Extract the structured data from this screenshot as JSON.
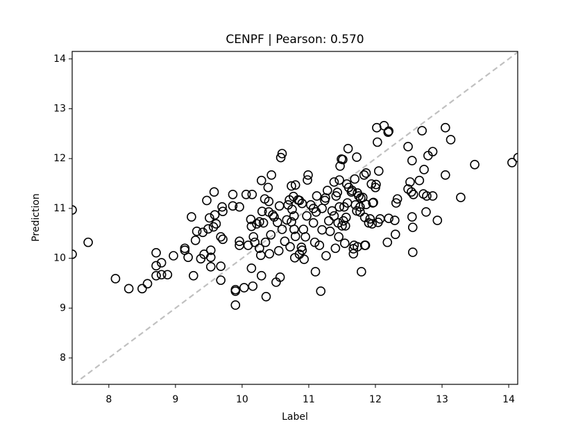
{
  "chart_data": {
    "type": "scatter",
    "title": "CENPF  |  Pearson: 0.570",
    "xlabel": "Label",
    "ylabel": "Prediction",
    "xlim": [
      7.45,
      14.135
    ],
    "ylim": [
      7.47,
      14.15
    ],
    "xticks": [
      8,
      9,
      10,
      11,
      12,
      13,
      14
    ],
    "yticks": [
      8,
      9,
      10,
      11,
      12,
      13,
      14
    ],
    "diagonal": true,
    "diagonal_color": "#c0c0c0",
    "marker_color": "#000000",
    "x": [
      7.45,
      7.45,
      7.69,
      8.1,
      8.3,
      8.5,
      8.58,
      8.71,
      8.71,
      8.79,
      8.71,
      8.79,
      8.88,
      8.97,
      9.14,
      9.14,
      9.19,
      9.24,
      9.27,
      9.3,
      9.32,
      9.38,
      9.41,
      9.43,
      9.49,
      9.53,
      9.53,
      9.51,
      9.47,
      9.58,
      9.57,
      9.59,
      9.53,
      9.61,
      9.68,
      9.71,
      9.68,
      9.68,
      9.7,
      9.71,
      9.86,
      9.86,
      9.96,
      9.9,
      9.9,
      9.9,
      9.96,
      9.96,
      10.03,
      10.09,
      10.06,
      10.15,
      10.13,
      10.14,
      10.14,
      10.16,
      10.17,
      10.19,
      10.22,
      10.26,
      10.26,
      10.29,
      10.28,
      10.29,
      10.3,
      10.32,
      10.34,
      10.35,
      10.39,
      10.4,
      10.41,
      10.36,
      10.4,
      10.43,
      10.44,
      10.46,
      10.48,
      10.51,
      10.53,
      10.55,
      10.56,
      10.58,
      10.6,
      10.57,
      10.6,
      10.64,
      10.67,
      10.69,
      10.71,
      10.72,
      10.74,
      10.74,
      10.75,
      10.77,
      10.78,
      10.78,
      10.79,
      10.8,
      10.8,
      10.84,
      10.86,
      10.86,
      10.9,
      10.89,
      10.9,
      10.92,
      10.93,
      10.95,
      10.97,
      10.98,
      10.99,
      11.03,
      11.07,
      11.07,
      11.09,
      11.1,
      11.11,
      11.12,
      11.16,
      11.18,
      11.2,
      11.2,
      11.24,
      11.25,
      11.26,
      11.28,
      11.3,
      11.32,
      11.35,
      11.38,
      11.38,
      11.4,
      11.41,
      11.43,
      11.44,
      11.45,
      11.46,
      11.46,
      11.47,
      11.49,
      11.5,
      11.51,
      11.52,
      11.53,
      11.54,
      11.55,
      11.56,
      11.57,
      11.58,
      11.59,
      11.6,
      11.64,
      11.65,
      11.67,
      11.67,
      11.68,
      11.69,
      11.7,
      11.72,
      11.72,
      11.73,
      11.73,
      11.75,
      11.77,
      11.77,
      11.78,
      11.79,
      11.81,
      11.83,
      11.84,
      11.84,
      11.85,
      11.86,
      11.86,
      11.9,
      11.92,
      11.94,
      11.96,
      11.97,
      11.95,
      12.0,
      12.01,
      12.02,
      12.03,
      12.04,
      12.05,
      12.07,
      12.13,
      12.18,
      12.19,
      12.2,
      12.2,
      12.29,
      12.31,
      12.33,
      12.3,
      12.49,
      12.49,
      12.52,
      12.54,
      12.55,
      12.55,
      12.56,
      12.56,
      12.57,
      12.66,
      12.7,
      12.72,
      12.73,
      12.76,
      12.77,
      12.79,
      12.86,
      12.86,
      12.93,
      13.05,
      13.05,
      13.13,
      13.28,
      13.49,
      14.05,
      14.14
    ],
    "y": [
      10.97,
      10.08,
      10.32,
      9.59,
      9.39,
      9.39,
      9.49,
      10.11,
      9.85,
      9.91,
      9.65,
      9.67,
      9.67,
      10.05,
      10.2,
      10.16,
      10.02,
      10.83,
      9.65,
      10.36,
      10.54,
      9.99,
      10.52,
      10.08,
      10.59,
      10.16,
      10.02,
      10.81,
      11.16,
      11.33,
      10.63,
      10.87,
      9.83,
      10.69,
      10.43,
      10.38,
      9.84,
      9.56,
      11.03,
      10.94,
      11.28,
      11.05,
      11.03,
      9.34,
      9.37,
      9.06,
      10.34,
      10.26,
      9.41,
      10.26,
      11.28,
      11.28,
      10.78,
      10.64,
      9.8,
      9.44,
      10.43,
      10.32,
      10.69,
      10.2,
      10.73,
      11.56,
      10.06,
      9.65,
      10.94,
      10.71,
      11.19,
      10.32,
      11.42,
      11.14,
      10.09,
      9.23,
      10.93,
      10.47,
      11.67,
      10.87,
      10.83,
      9.52,
      10.72,
      10.15,
      11.05,
      12.02,
      12.1,
      9.62,
      10.58,
      10.34,
      10.77,
      11.07,
      11.17,
      10.23,
      11.45,
      10.73,
      10.98,
      11.24,
      10.58,
      10.85,
      10.01,
      11.47,
      10.44,
      11.17,
      11.16,
      10.08,
      11.1,
      10.22,
      10.16,
      10.58,
      9.98,
      10.43,
      10.85,
      11.57,
      11.67,
      11.07,
      11.0,
      10.71,
      10.32,
      9.73,
      10.93,
      11.25,
      10.26,
      9.34,
      10.57,
      11.0,
      11.16,
      11.21,
      10.05,
      11.36,
      10.75,
      10.54,
      10.95,
      11.53,
      10.85,
      10.2,
      11.25,
      11.32,
      10.71,
      10.43,
      11.57,
      11.03,
      11.85,
      11.99,
      10.65,
      11.98,
      10.75,
      11.03,
      10.3,
      10.65,
      10.82,
      11.49,
      11.11,
      12.2,
      11.42,
      11.33,
      11.36,
      10.19,
      10.09,
      10.26,
      11.59,
      11.07,
      12.03,
      10.95,
      10.23,
      11.31,
      11.25,
      11.03,
      10.93,
      11.21,
      9.73,
      11.22,
      11.67,
      10.82,
      10.26,
      10.26,
      11.08,
      11.71,
      10.71,
      10.79,
      11.49,
      11.11,
      11.12,
      10.69,
      11.42,
      11.48,
      12.62,
      12.33,
      10.72,
      11.75,
      10.79,
      12.66,
      10.32,
      12.53,
      12.55,
      10.8,
      10.76,
      11.11,
      11.19,
      10.48,
      12.24,
      11.39,
      11.53,
      11.33,
      11.96,
      10.83,
      10.62,
      10.12,
      11.28,
      11.56,
      12.56,
      11.29,
      11.78,
      10.93,
      11.25,
      12.06,
      12.14,
      11.25,
      10.76,
      12.62,
      11.67,
      12.38,
      11.22,
      11.88,
      11.92,
      12.02
    ]
  }
}
